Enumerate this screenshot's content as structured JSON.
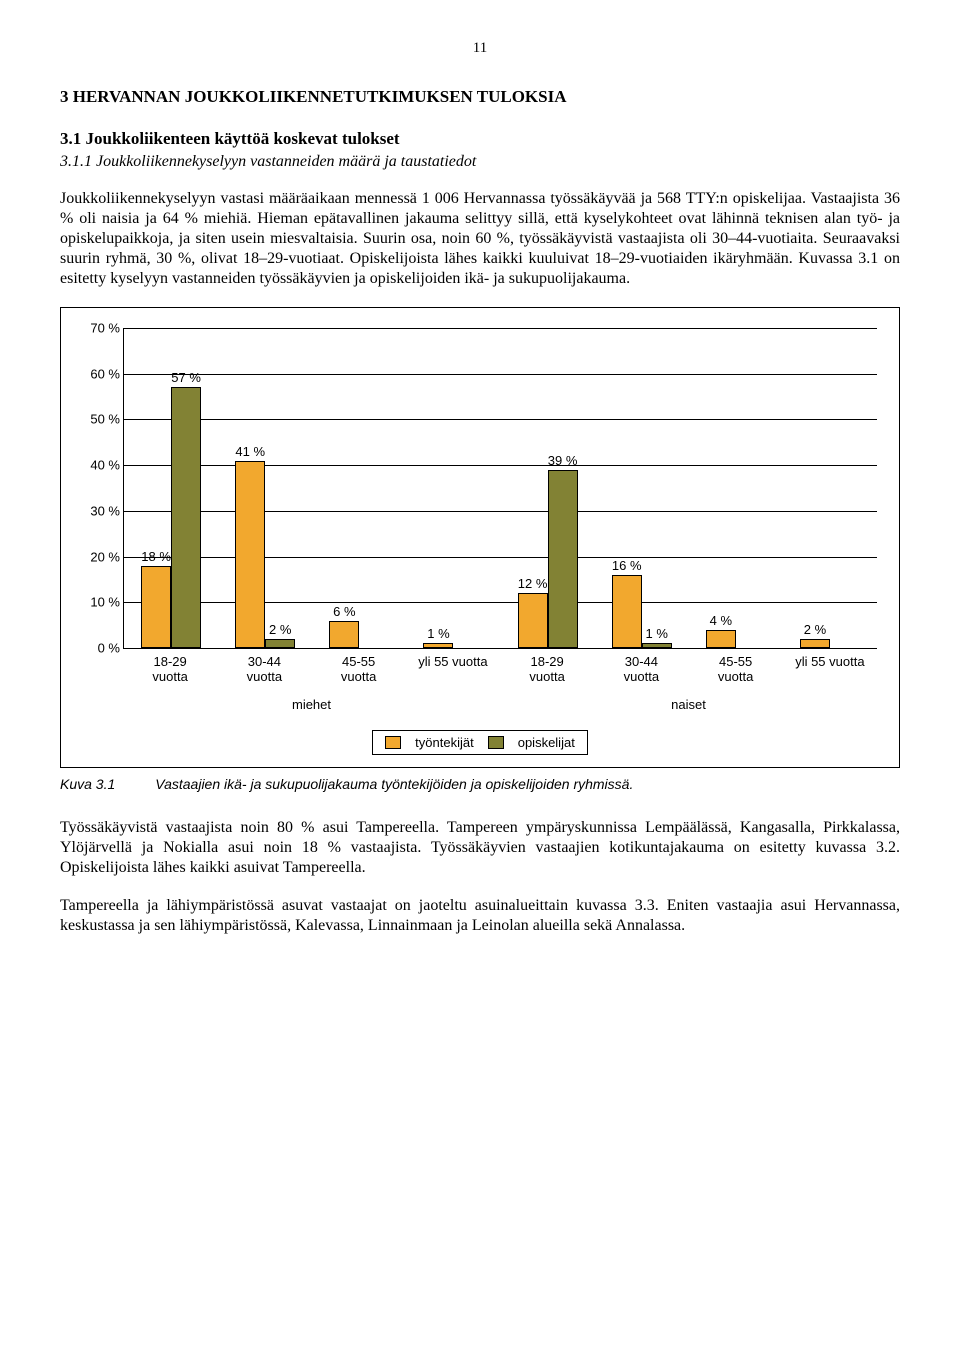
{
  "page_number": "11",
  "heading": "3 HERVANNAN JOUKKOLIIKENNETUTKIMUKSEN TULOKSIA",
  "subheading": "3.1 Joukkoliikenteen käyttöä koskevat tulokset",
  "subsubheading": "3.1.1 Joukkoliikennekyselyyn vastanneiden määrä ja taustatiedot",
  "para1": "Joukkoliikennekyselyyn vastasi määräaikaan mennessä 1 006 Hervannassa työssäkäyvää ja 568 TTY:n opiskelijaa. Vastaajista 36 % oli naisia ja 64 % miehiä. Hieman epätavallinen jakauma selittyy sillä, että kyselykohteet ovat lähinnä teknisen alan työ- ja opiskelupaikkoja, ja siten usein miesvaltaisia. Suurin osa, noin 60 %, työssäkäyvistä vastaajista oli 30–44-vuotiaita. Seuraavaksi suurin ryhmä, 30 %, olivat 18–29-vuotiaat. Opiskelijoista lähes kaikki kuuluivat 18–29-vuotiaiden ikäryhmään. Kuvassa 3.1 on esitetty kyselyyn vastanneiden työssäkäyvien ja opiskelijoiden ikä- ja sukupuolijakauma.",
  "chart": {
    "type": "bar",
    "ylim_max": 70,
    "ytick_step": 10,
    "ytick_suffix": " %",
    "categories": [
      "18-29\nvuotta",
      "30-44\nvuotta",
      "45-55\nvuotta",
      "yli 55 vuotta",
      "18-29\nvuotta",
      "30-44\nvuotta",
      "45-55\nvuotta",
      "yli 55 vuotta"
    ],
    "group_labels": [
      "miehet",
      "naiset"
    ],
    "series": [
      {
        "name": "työntekijät",
        "color": "#f2a82e",
        "values": [
          18,
          41,
          6,
          1,
          12,
          16,
          4,
          2
        ]
      },
      {
        "name": "opiskelijat",
        "color": "#828234",
        "values": [
          57,
          2,
          0,
          0,
          39,
          1,
          0,
          0
        ]
      }
    ],
    "value_labels": [
      [
        "18 %",
        "57 %"
      ],
      [
        "41 %",
        "2 %"
      ],
      [
        "6 %",
        ""
      ],
      [
        "1 %",
        ""
      ],
      [
        "12 %",
        "39 %"
      ],
      [
        "16 %",
        "1 %"
      ],
      [
        "4 %",
        ""
      ],
      [
        "2 %",
        ""
      ]
    ],
    "background_color": "#ffffff",
    "grid_color": "#000000",
    "border_color": "#000000",
    "label_fontsize": 13
  },
  "caption_label": "Kuva 3.1",
  "caption_text": "Vastaajien ikä- ja sukupuolijakauma työntekijöiden ja opiskelijoiden ryhmissä.",
  "para2": "Työssäkäyvistä vastaajista noin 80 % asui Tampereella. Tampereen ympäryskunnissa Lempäälässä, Kangasalla, Pirkkalassa, Ylöjärvellä ja Nokialla asui noin 18 % vastaajista. Työssäkäyvien vastaajien kotikuntajakauma on esitetty kuvassa 3.2. Opiskelijoista lähes kaikki asuivat Tampereella.",
  "para3": "Tampereella ja lähiympäristössä asuvat vastaajat on jaoteltu asuinalueittain kuvassa 3.3. Eniten vastaajia asui Hervannassa, keskustassa ja sen lähiympäristössä, Kalevassa, Linnainmaan ja Leinolan alueilla sekä Annalassa."
}
